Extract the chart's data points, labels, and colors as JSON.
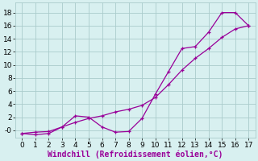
{
  "line1_x": [
    0,
    1,
    2,
    3,
    4,
    5,
    6,
    7,
    8,
    9,
    10,
    11,
    12,
    13,
    14,
    15,
    16,
    17
  ],
  "line1_y": [
    -0.5,
    -0.7,
    -0.5,
    0.5,
    2.2,
    2.0,
    0.5,
    -0.3,
    -0.2,
    1.8,
    5.5,
    9.0,
    12.5,
    12.8,
    15.0,
    18.0,
    18.0,
    16.0
  ],
  "line2_x": [
    0,
    1,
    2,
    3,
    4,
    5,
    6,
    7,
    8,
    9,
    10,
    11,
    12,
    13,
    14,
    15,
    16,
    17
  ],
  "line2_y": [
    -0.5,
    -0.3,
    -0.2,
    0.5,
    1.2,
    1.8,
    2.2,
    2.8,
    3.2,
    3.8,
    5.0,
    7.0,
    9.2,
    11.0,
    12.5,
    14.2,
    15.5,
    16.0
  ],
  "color": "#990099",
  "bg_color": "#d8f0f0",
  "grid_color": "#aacccc",
  "xlabel": "Windchill (Refroidissement éolien,°C)",
  "xlim": [
    -0.5,
    17.5
  ],
  "ylim": [
    -1.2,
    19.5
  ],
  "xticks": [
    0,
    1,
    2,
    3,
    4,
    5,
    6,
    7,
    8,
    9,
    10,
    11,
    12,
    13,
    14,
    15,
    16,
    17
  ],
  "yticks": [
    0,
    2,
    4,
    6,
    8,
    10,
    12,
    14,
    16,
    18
  ],
  "ytick_labels": [
    "-0",
    "2",
    "4",
    "6",
    "8",
    "10",
    "12",
    "14",
    "16",
    "18"
  ],
  "xlabel_fontsize": 7,
  "tick_fontsize": 6.5,
  "marker_size": 3,
  "linewidth": 0.9
}
